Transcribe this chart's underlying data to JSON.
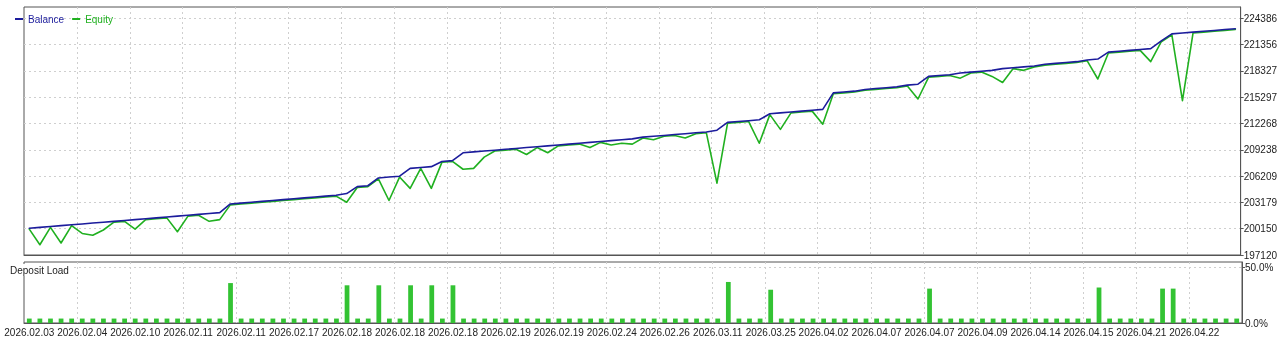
{
  "chart_data": [
    {
      "type": "line",
      "legend": "top left",
      "grid": true,
      "tick_labels": "y",
      "line_style": "solid",
      "marker": "none",
      "categories": [
        "2026.02.03",
        null,
        null,
        null,
        null,
        "2026.02.04",
        null,
        null,
        null,
        null,
        "2026.02.10",
        null,
        null,
        null,
        null,
        "2026.02.11",
        null,
        null,
        null,
        null,
        "2026.02.11",
        null,
        null,
        null,
        null,
        "2026.02.17",
        null,
        null,
        null,
        null,
        "2026.02.18",
        null,
        null,
        null,
        null,
        "2026.02.18",
        null,
        null,
        null,
        null,
        "2026.02.18",
        null,
        null,
        null,
        null,
        "2026.02.19",
        null,
        null,
        null,
        null,
        "2026.02.19",
        null,
        null,
        null,
        null,
        "2026.02.24",
        null,
        null,
        null,
        null,
        "2026.02.26",
        null,
        null,
        null,
        null,
        "2026.03.11",
        null,
        null,
        null,
        null,
        "2026.03.25",
        null,
        null,
        null,
        null,
        "2026.04.02",
        null,
        null,
        null,
        null,
        "2026.04.07",
        null,
        null,
        null,
        null,
        "2026.04.07",
        null,
        null,
        null,
        null,
        "2026.04.09",
        null,
        null,
        null,
        null,
        "2026.04.14",
        null,
        null,
        null,
        null,
        "2026.04.15",
        null,
        null,
        null,
        null,
        "2026.04.21",
        null,
        null,
        null,
        null,
        "2026.04.22",
        null,
        null,
        null,
        null
      ],
      "ylim": [
        197120,
        225700
      ],
      "yticks": [
        197120,
        200150,
        203179,
        206209,
        209238,
        212268,
        215297,
        218327,
        221356,
        224386
      ],
      "series": [
        {
          "name": "Balance",
          "color": "#1c1c9c",
          "values": [
            200200,
            200300,
            200400,
            200500,
            200600,
            200700,
            200800,
            200900,
            201000,
            201100,
            201200,
            201300,
            201400,
            201500,
            201600,
            201700,
            201800,
            201900,
            202000,
            203000,
            203100,
            203200,
            203300,
            203400,
            203500,
            203600,
            203700,
            203800,
            203900,
            204000,
            204200,
            205000,
            205100,
            206000,
            206100,
            206200,
            207100,
            207200,
            207300,
            207900,
            208000,
            208900,
            209000,
            209100,
            209200,
            209300,
            209400,
            209500,
            209600,
            209700,
            209800,
            209900,
            210000,
            210100,
            210200,
            210300,
            210400,
            210500,
            210700,
            210800,
            210900,
            211000,
            211100,
            211200,
            211300,
            211500,
            212400,
            212500,
            212600,
            212700,
            213400,
            213500,
            213600,
            213700,
            213800,
            213900,
            215800,
            215900,
            216000,
            216200,
            216300,
            216400,
            216500,
            216700,
            216800,
            217700,
            217800,
            217900,
            218100,
            218200,
            218300,
            218400,
            218600,
            218700,
            218800,
            218900,
            219100,
            219200,
            219300,
            219400,
            219600,
            219700,
            220500,
            220600,
            220700,
            220800,
            220900,
            221800,
            222600,
            222700,
            222800,
            222900,
            223000,
            223100,
            223200
          ]
        },
        {
          "name": "Equity",
          "color": "#20b020",
          "values": [
            200100,
            198300,
            200300,
            198500,
            200500,
            199600,
            199400,
            200000,
            200900,
            201000,
            200100,
            201200,
            201300,
            201400,
            199800,
            201600,
            201700,
            201000,
            201200,
            202900,
            203000,
            203100,
            203200,
            203300,
            203400,
            203500,
            203600,
            203700,
            203800,
            203900,
            203200,
            204900,
            205000,
            205900,
            203400,
            206100,
            204800,
            207100,
            204800,
            207800,
            207900,
            207000,
            207100,
            208400,
            209100,
            209200,
            209300,
            208700,
            209500,
            208900,
            209700,
            209800,
            209900,
            209500,
            210100,
            209800,
            210000,
            209900,
            210600,
            210400,
            210800,
            210900,
            210600,
            211100,
            211200,
            205400,
            212300,
            212400,
            212500,
            210000,
            213300,
            211600,
            213500,
            213600,
            213700,
            212200,
            215700,
            215800,
            215900,
            216100,
            216200,
            216300,
            216400,
            216600,
            215100,
            217600,
            217700,
            217800,
            217500,
            218100,
            218200,
            217700,
            217000,
            218600,
            218400,
            218800,
            219000,
            219100,
            219200,
            219300,
            219500,
            217400,
            220400,
            220500,
            220600,
            220700,
            219400,
            221700,
            222500,
            214900,
            222700,
            222800,
            222900,
            223000,
            223100
          ]
        }
      ]
    },
    {
      "type": "bar",
      "title": "Deposit Load",
      "grid": true,
      "color": "#33c333",
      "categories": [
        "2026.02.03",
        null,
        null,
        null,
        null,
        "2026.02.04",
        null,
        null,
        null,
        null,
        "2026.02.10",
        null,
        null,
        null,
        null,
        "2026.02.11",
        null,
        null,
        null,
        null,
        "2026.02.11",
        null,
        null,
        null,
        null,
        "2026.02.17",
        null,
        null,
        null,
        null,
        "2026.02.18",
        null,
        null,
        null,
        null,
        "2026.02.18",
        null,
        null,
        null,
        null,
        "2026.02.18",
        null,
        null,
        null,
        null,
        "2026.02.19",
        null,
        null,
        null,
        null,
        "2026.02.19",
        null,
        null,
        null,
        null,
        "2026.02.24",
        null,
        null,
        null,
        null,
        "2026.02.26",
        null,
        null,
        null,
        null,
        "2026.03.11",
        null,
        null,
        null,
        null,
        "2026.03.25",
        null,
        null,
        null,
        null,
        "2026.04.02",
        null,
        null,
        null,
        null,
        "2026.04.07",
        null,
        null,
        null,
        null,
        "2026.04.07",
        null,
        null,
        null,
        null,
        "2026.04.09",
        null,
        null,
        null,
        null,
        "2026.04.14",
        null,
        null,
        null,
        null,
        "2026.04.15",
        null,
        null,
        null,
        null,
        "2026.04.21",
        null,
        null,
        null,
        null,
        "2026.04.22",
        null,
        null,
        null,
        null
      ],
      "ylim": [
        0,
        55
      ],
      "yticks": [
        {
          "value": 0,
          "label": "0.0%"
        },
        {
          "value": 50,
          "label": "50.0%"
        }
      ],
      "values": [
        4,
        4,
        4,
        4,
        4,
        4,
        4,
        4,
        4,
        4,
        4,
        4,
        4,
        4,
        4,
        4,
        4,
        4,
        4,
        36,
        4,
        4,
        4,
        4,
        4,
        4,
        4,
        4,
        4,
        4,
        34,
        4,
        4,
        34,
        4,
        4,
        34,
        4,
        34,
        4,
        34,
        4,
        4,
        4,
        4,
        4,
        4,
        4,
        4,
        4,
        4,
        4,
        4,
        4,
        4,
        4,
        4,
        4,
        4,
        4,
        4,
        4,
        4,
        4,
        4,
        4,
        37,
        4,
        4,
        4,
        30,
        4,
        4,
        4,
        4,
        4,
        4,
        4,
        4,
        4,
        4,
        4,
        4,
        4,
        4,
        31,
        4,
        4,
        4,
        4,
        4,
        4,
        4,
        4,
        4,
        4,
        4,
        4,
        4,
        4,
        4,
        32,
        4,
        4,
        4,
        4,
        4,
        31,
        31,
        4,
        4,
        4,
        4,
        4,
        4
      ]
    }
  ]
}
